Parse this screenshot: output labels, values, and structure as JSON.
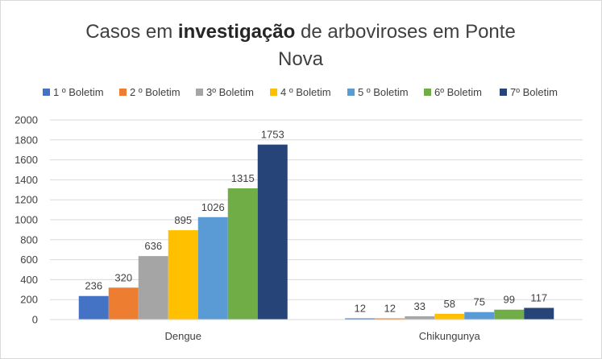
{
  "chart_data": {
    "type": "bar",
    "title": {
      "pre": "Casos em ",
      "bold": "investigação",
      "post": " de arboviroses em Ponte",
      "line2": "Nova"
    },
    "categories": [
      "Dengue",
      "Chikungunya"
    ],
    "series": [
      {
        "name": "1 º Boletim",
        "color": "#4472c4",
        "values": [
          236,
          12
        ]
      },
      {
        "name": "2 º Boletim",
        "color": "#ed7d31",
        "values": [
          320,
          12
        ]
      },
      {
        "name": "3º Boletim",
        "color": "#a5a5a5",
        "values": [
          636,
          33
        ]
      },
      {
        "name": "4 º Boletim",
        "color": "#ffc000",
        "values": [
          895,
          58
        ]
      },
      {
        "name": "5 º Boletim",
        "color": "#5b9bd5",
        "values": [
          1026,
          75
        ]
      },
      {
        "name": "6º Boletim",
        "color": "#70ad47",
        "values": [
          1315,
          99
        ]
      },
      {
        "name": "7º Boletim",
        "color": "#264478",
        "values": [
          1753,
          117
        ]
      }
    ],
    "ylim": [
      0,
      2000
    ],
    "yticks": [
      "0",
      "200",
      "400",
      "600",
      "800",
      "1000",
      "1200",
      "1400",
      "1600",
      "1800",
      "2000"
    ],
    "grid": true,
    "legend_position": "top"
  }
}
